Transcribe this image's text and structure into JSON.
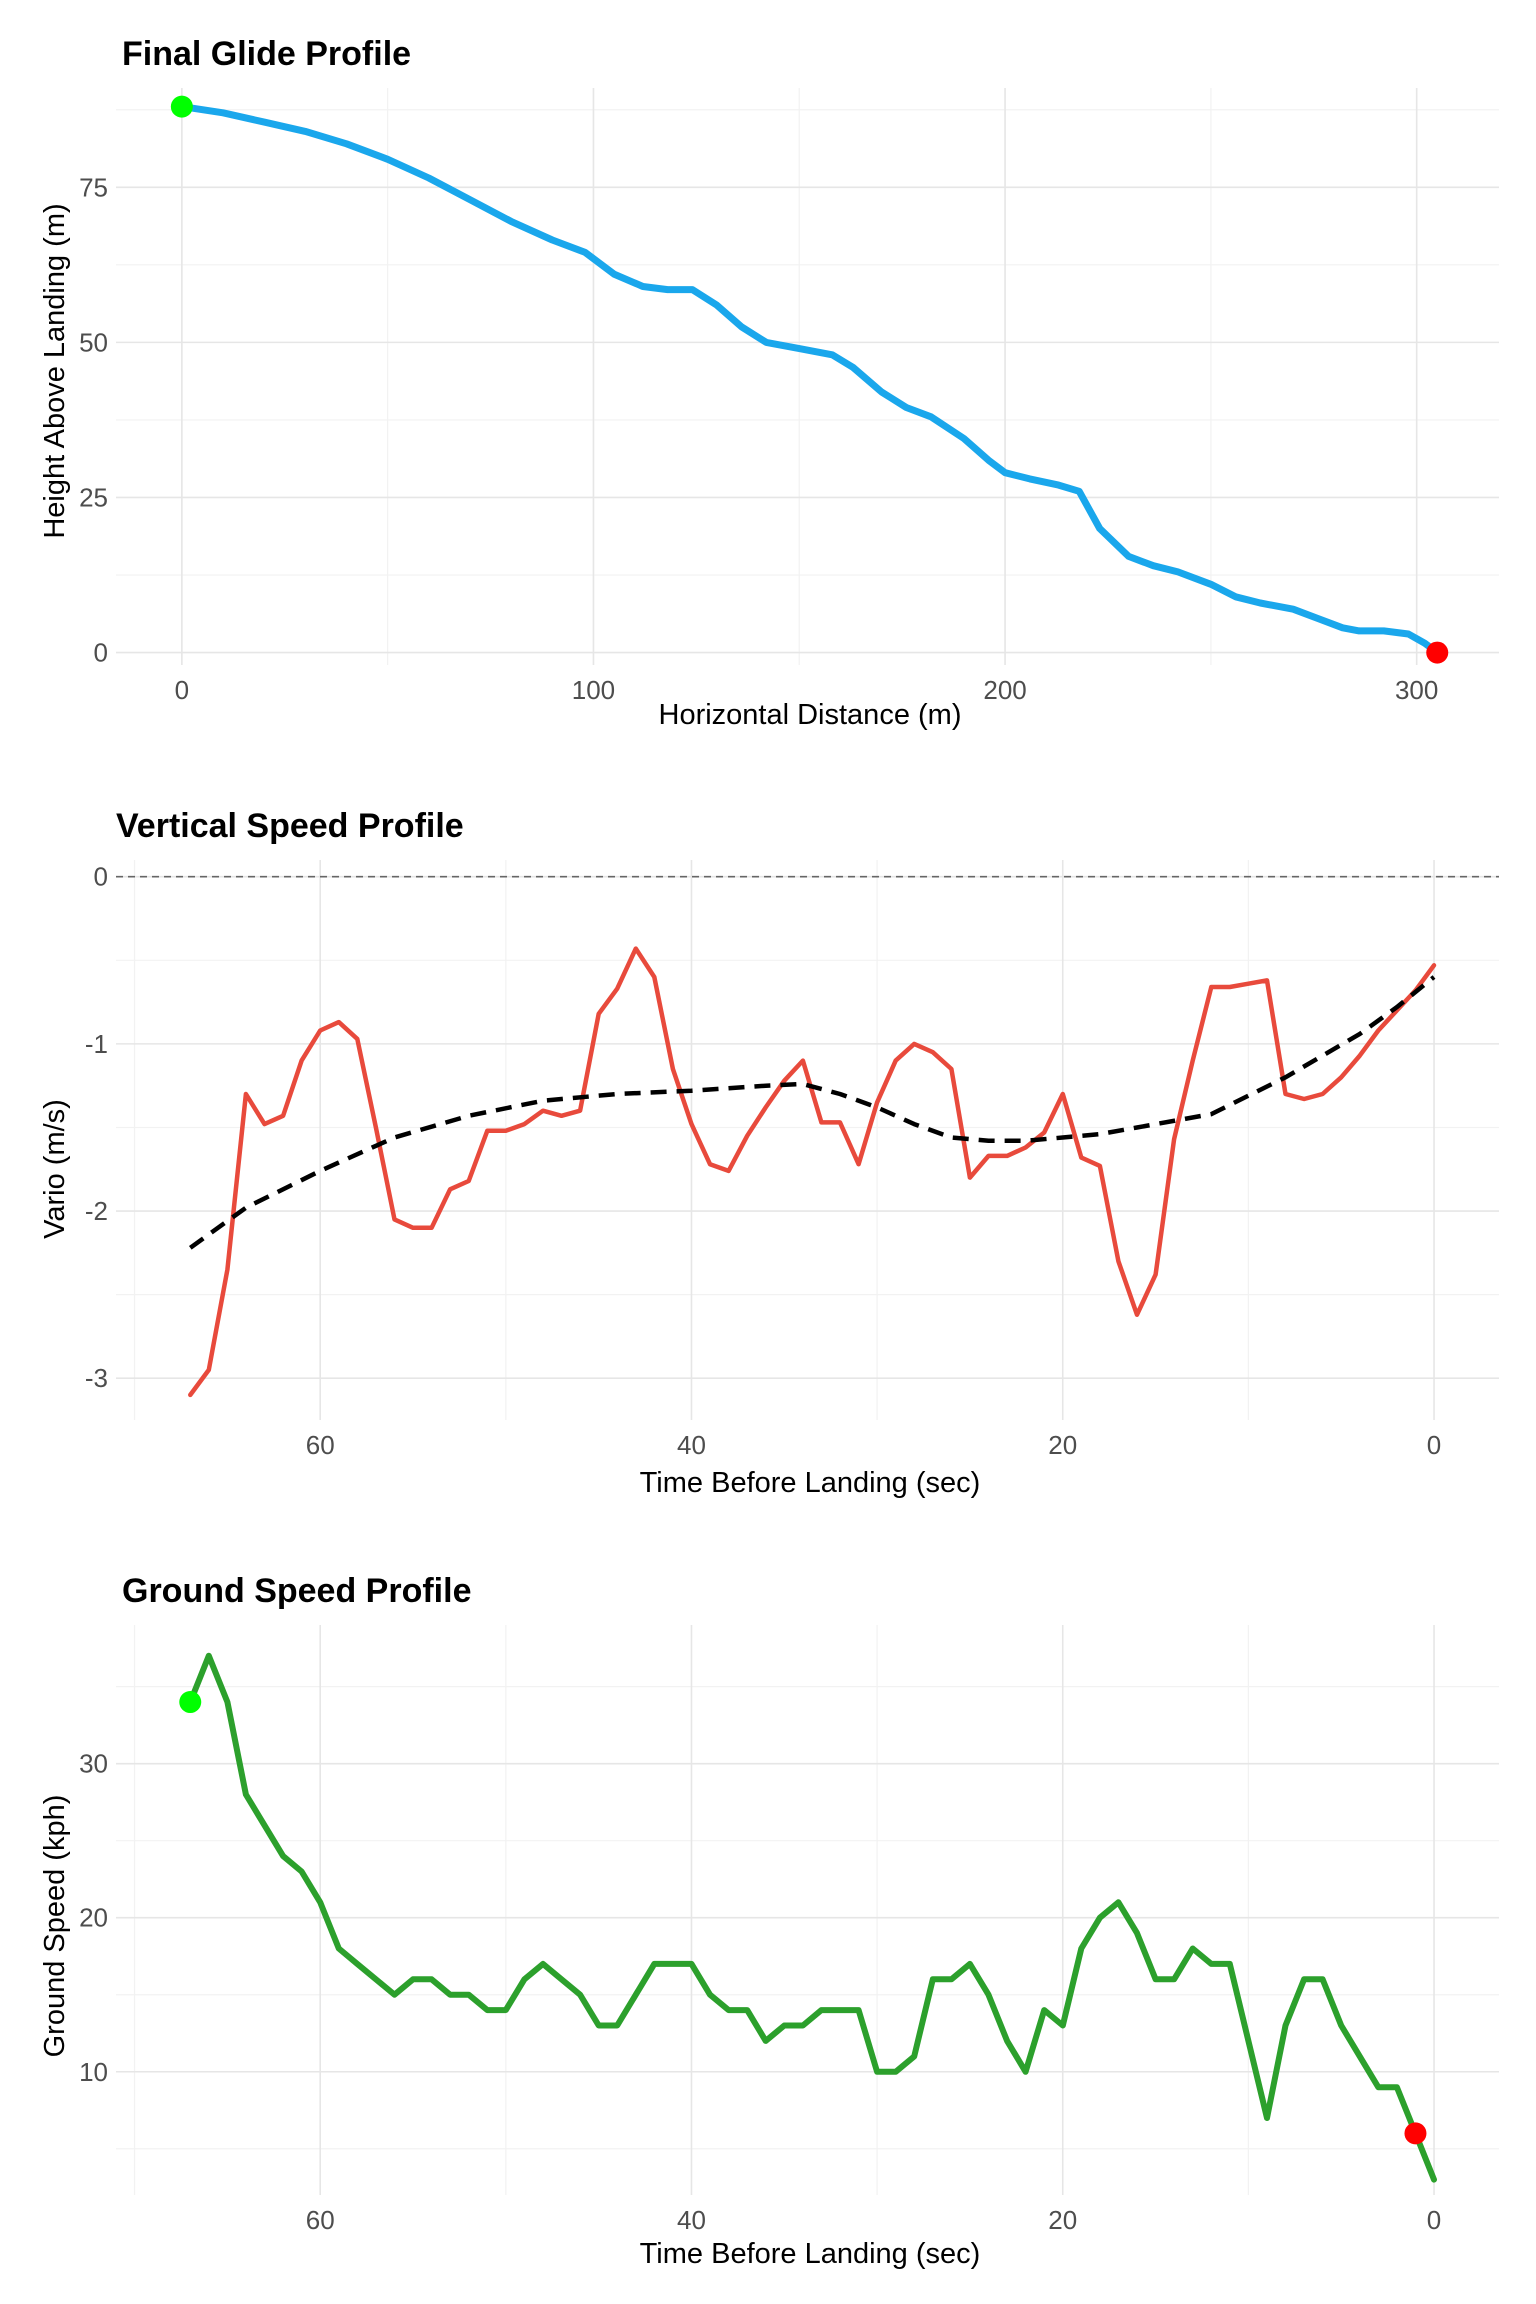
{
  "chart_data": [
    {
      "type": "line",
      "title": "Final Glide Profile",
      "xlabel": "Horizontal Distance (m)",
      "ylabel": "Height Above Landing (m)",
      "xlim": [
        -16,
        320
      ],
      "ylim": [
        -2,
        91
      ],
      "x_ticks": [
        0,
        100,
        200,
        300
      ],
      "y_ticks": [
        0,
        25,
        50,
        75
      ],
      "grid": true,
      "colors": {
        "line": "#1aa7ec",
        "start_marker": "#00ff00",
        "end_marker": "#ff0000"
      },
      "series": [
        {
          "x": [
            0,
            10,
            20,
            30,
            40,
            50,
            60,
            70,
            80,
            90,
            98,
            105,
            112,
            118,
            124,
            130,
            136,
            142,
            150,
            158,
            163,
            170,
            176,
            182,
            190,
            196,
            200,
            206,
            213,
            218,
            223,
            230,
            236,
            242,
            250,
            256,
            262,
            270,
            276,
            282,
            286,
            292,
            298,
            302,
            305
          ],
          "y": [
            88,
            87,
            85.5,
            84,
            82,
            79.5,
            76.5,
            73,
            69.5,
            66.5,
            64.5,
            61,
            59,
            58.5,
            58.5,
            56,
            52.5,
            50,
            49,
            48,
            46,
            42,
            39.5,
            38,
            34.5,
            31,
            29,
            28,
            27,
            26,
            20,
            15.5,
            14,
            13,
            11,
            9,
            8,
            7,
            5.5,
            4,
            3.5,
            3.5,
            3,
            1.5,
            0
          ]
        }
      ],
      "markers": [
        {
          "x": 0,
          "y": 88,
          "color": "#00ff00"
        },
        {
          "x": 305,
          "y": 0,
          "color": "#ff0000"
        }
      ]
    },
    {
      "type": "line",
      "title": "Vertical Speed Profile",
      "xlabel": "Time Before Landing (sec)",
      "ylabel": "Vario (m/s)",
      "xlim": [
        71,
        -3.5
      ],
      "ylim": [
        -3.25,
        0.1
      ],
      "x_ticks": [
        60,
        40,
        20,
        0
      ],
      "y_ticks": [
        0,
        -1,
        -2,
        -3
      ],
      "grid": true,
      "reference_line": {
        "y": 0,
        "style": "dashed",
        "color": "#666666"
      },
      "colors": {
        "vario": "#e84a3c",
        "trend": "#000000"
      },
      "series": [
        {
          "name": "vario",
          "x": [
            67,
            66,
            65,
            64,
            63,
            62,
            61,
            60,
            59,
            58,
            57,
            56,
            55,
            54,
            53,
            52,
            51,
            50,
            49,
            48,
            47,
            46,
            45,
            44,
            43,
            42,
            41,
            40,
            39,
            38,
            37,
            36,
            35,
            34,
            33,
            32,
            31,
            30,
            29,
            28,
            27,
            26,
            25,
            24,
            23,
            22,
            21,
            20,
            19,
            18,
            17,
            16,
            15,
            14,
            13,
            12,
            11,
            10,
            9,
            8,
            7,
            6,
            5,
            4,
            3,
            2,
            1,
            0
          ],
          "y": [
            -3.1,
            -2.95,
            -2.35,
            -1.3,
            -1.48,
            -1.43,
            -1.1,
            -0.92,
            -0.87,
            -0.97,
            -1.5,
            -2.05,
            -2.1,
            -2.1,
            -1.87,
            -1.82,
            -1.52,
            -1.52,
            -1.48,
            -1.4,
            -1.43,
            -1.4,
            -0.82,
            -0.67,
            -0.43,
            -0.6,
            -1.15,
            -1.48,
            -1.72,
            -1.76,
            -1.55,
            -1.38,
            -1.22,
            -1.1,
            -1.47,
            -1.47,
            -1.72,
            -1.35,
            -1.1,
            -1.0,
            -1.05,
            -1.15,
            -1.8,
            -1.67,
            -1.67,
            -1.62,
            -1.53,
            -1.3,
            -1.68,
            -1.73,
            -2.3,
            -2.62,
            -2.38,
            -1.57,
            -1.1,
            -0.66,
            -0.66,
            -0.64,
            -0.62,
            -1.3,
            -1.33,
            -1.3,
            -1.2,
            -1.07,
            -0.92,
            -0.8,
            -0.68,
            -0.53
          ]
        },
        {
          "name": "trend",
          "x": [
            67,
            64,
            60,
            56,
            52,
            48,
            44,
            40,
            36,
            34,
            32,
            30,
            28,
            26,
            24,
            22,
            20,
            18,
            16,
            12,
            8,
            4,
            2,
            0
          ],
          "y": [
            -2.22,
            -1.98,
            -1.76,
            -1.56,
            -1.43,
            -1.34,
            -1.3,
            -1.28,
            -1.25,
            -1.24,
            -1.3,
            -1.38,
            -1.48,
            -1.56,
            -1.58,
            -1.58,
            -1.56,
            -1.54,
            -1.5,
            -1.42,
            -1.2,
            -0.94,
            -0.78,
            -0.6
          ]
        }
      ]
    },
    {
      "type": "line",
      "title": "Ground Speed Profile",
      "xlabel": "Time Before Landing (sec)",
      "ylabel": "Ground Speed (kph)",
      "xlim": [
        71,
        -3.5
      ],
      "ylim": [
        2,
        39
      ],
      "x_ticks": [
        60,
        40,
        20,
        0
      ],
      "y_ticks": [
        10,
        20,
        30
      ],
      "grid": true,
      "colors": {
        "line": "#2ca02c",
        "start_marker": "#00ff00",
        "end_marker": "#ff0000"
      },
      "series": [
        {
          "x": [
            67,
            66,
            65,
            64,
            63,
            62,
            61,
            60,
            59,
            58,
            57,
            56,
            55,
            54,
            53,
            52,
            51,
            50,
            49,
            48,
            47,
            46,
            45,
            44,
            43,
            42,
            41,
            40,
            39,
            38,
            37,
            36,
            35,
            34,
            33,
            32,
            31,
            30,
            29,
            28,
            27,
            26,
            25,
            24,
            23,
            22,
            21,
            20,
            19,
            18,
            17,
            16,
            15,
            14,
            13,
            12,
            11,
            10,
            9,
            8,
            7,
            6,
            5,
            4,
            3,
            2,
            1,
            0
          ],
          "y": [
            34,
            37,
            34,
            28,
            26,
            24,
            23,
            21,
            18,
            17,
            16,
            15,
            16,
            16,
            15,
            15,
            14,
            14,
            16,
            17,
            16,
            15,
            13,
            13,
            15,
            17,
            17,
            17,
            15,
            14,
            14,
            12,
            13,
            13,
            14,
            14,
            14,
            10,
            10,
            11,
            16,
            16,
            17,
            15,
            12,
            10,
            14,
            13,
            18,
            20,
            21,
            19,
            16,
            16,
            18,
            17,
            17,
            12,
            7,
            13,
            16,
            16,
            13,
            11,
            9,
            9,
            6,
            3
          ]
        }
      ],
      "markers": [
        {
          "x": 67,
          "y": 34,
          "color": "#00ff00"
        },
        {
          "x": 1,
          "y": 6,
          "color": "#ff0000"
        }
      ]
    }
  ]
}
